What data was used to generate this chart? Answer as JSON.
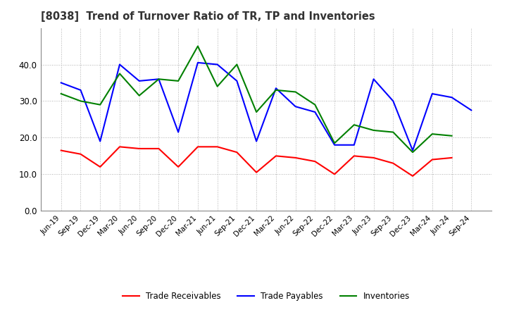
{
  "title": "[8038]  Trend of Turnover Ratio of TR, TP and Inventories",
  "labels": [
    "Jun-19",
    "Sep-19",
    "Dec-19",
    "Mar-20",
    "Jun-20",
    "Sep-20",
    "Dec-20",
    "Mar-21",
    "Jun-21",
    "Sep-21",
    "Dec-21",
    "Mar-22",
    "Jun-22",
    "Sep-22",
    "Dec-22",
    "Mar-23",
    "Jun-23",
    "Sep-23",
    "Dec-23",
    "Mar-24",
    "Jun-24",
    "Sep-24"
  ],
  "trade_receivables": [
    16.5,
    15.5,
    12.0,
    17.5,
    17.0,
    17.0,
    12.0,
    17.5,
    17.5,
    16.0,
    10.5,
    15.0,
    14.5,
    13.5,
    10.0,
    15.0,
    14.5,
    13.0,
    9.5,
    14.0,
    14.5,
    null
  ],
  "trade_payables": [
    35.0,
    33.0,
    19.0,
    40.0,
    35.5,
    36.0,
    21.5,
    40.5,
    40.0,
    35.5,
    19.0,
    33.5,
    28.5,
    27.0,
    18.0,
    18.0,
    36.0,
    30.0,
    16.5,
    32.0,
    31.0,
    27.5
  ],
  "inventories": [
    32.0,
    30.0,
    29.0,
    37.5,
    31.5,
    36.0,
    35.5,
    45.0,
    34.0,
    40.0,
    27.0,
    33.0,
    32.5,
    29.0,
    18.5,
    23.5,
    22.0,
    21.5,
    16.0,
    21.0,
    20.5,
    null
  ],
  "ylim": [
    0,
    50
  ],
  "yticks": [
    0.0,
    10.0,
    20.0,
    30.0,
    40.0
  ],
  "tr_color": "#ff0000",
  "tp_color": "#0000ff",
  "inv_color": "#008000",
  "legend_labels": [
    "Trade Receivables",
    "Trade Payables",
    "Inventories"
  ],
  "background_color": "#ffffff",
  "grid_color": "#b0b0b0"
}
